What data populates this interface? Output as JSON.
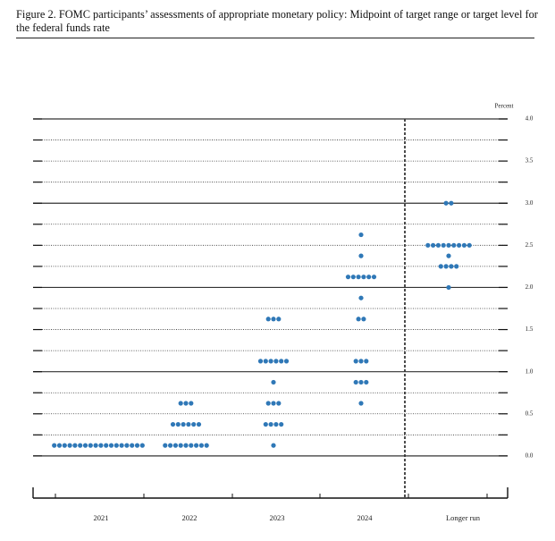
{
  "chart_data": {
    "type": "dotplot",
    "title": "Figure 2. FOMC participants’ assessments of appropriate monetary policy: Midpoint of target range or target level for the federal funds rate",
    "y_axis_label": "Percent",
    "color": "#2f78b7",
    "categories": [
      "2021",
      "2022",
      "2023",
      "2024",
      "Longer run"
    ],
    "dots": [
      [
        {
          "rate": 0.125,
          "count": 18
        }
      ],
      [
        {
          "rate": 0.125,
          "count": 9
        },
        {
          "rate": 0.375,
          "count": 6
        },
        {
          "rate": 0.625,
          "count": 3
        }
      ],
      [
        {
          "rate": 0.125,
          "count": 1
        },
        {
          "rate": 0.375,
          "count": 4
        },
        {
          "rate": 0.625,
          "count": 3
        },
        {
          "rate": 0.875,
          "count": 1
        },
        {
          "rate": 1.125,
          "count": 6
        },
        {
          "rate": 1.625,
          "count": 3
        }
      ],
      [
        {
          "rate": 0.625,
          "count": 1
        },
        {
          "rate": 0.875,
          "count": 3
        },
        {
          "rate": 1.125,
          "count": 3
        },
        {
          "rate": 1.625,
          "count": 2
        },
        {
          "rate": 1.875,
          "count": 1
        },
        {
          "rate": 2.125,
          "count": 6
        },
        {
          "rate": 2.375,
          "count": 1
        },
        {
          "rate": 2.625,
          "count": 1
        }
      ],
      [
        {
          "rate": 2.0,
          "count": 1
        },
        {
          "rate": 2.25,
          "count": 4
        },
        {
          "rate": 2.375,
          "count": 1
        },
        {
          "rate": 2.5,
          "count": 9
        },
        {
          "rate": 3.0,
          "count": 2
        }
      ]
    ],
    "ylim": [
      -0.5,
      4.0
    ],
    "yticks": [
      {
        "value": 0,
        "label": "0.0"
      },
      {
        "value": 0.5,
        "label": "0.5"
      },
      {
        "value": 1,
        "label": "1.0"
      },
      {
        "value": 1.5,
        "label": "1.5"
      },
      {
        "value": 2,
        "label": "2.0"
      },
      {
        "value": 2.5,
        "label": "2.5"
      },
      {
        "value": 3,
        "label": "3.0"
      },
      {
        "value": 3.5,
        "label": "3.5"
      },
      {
        "value": 4,
        "label": "4.0"
      }
    ],
    "minor_yticks": [
      0.25,
      0.75,
      1.25,
      1.75,
      2.25,
      2.75,
      3.25,
      3.75
    ],
    "grid": true
  }
}
